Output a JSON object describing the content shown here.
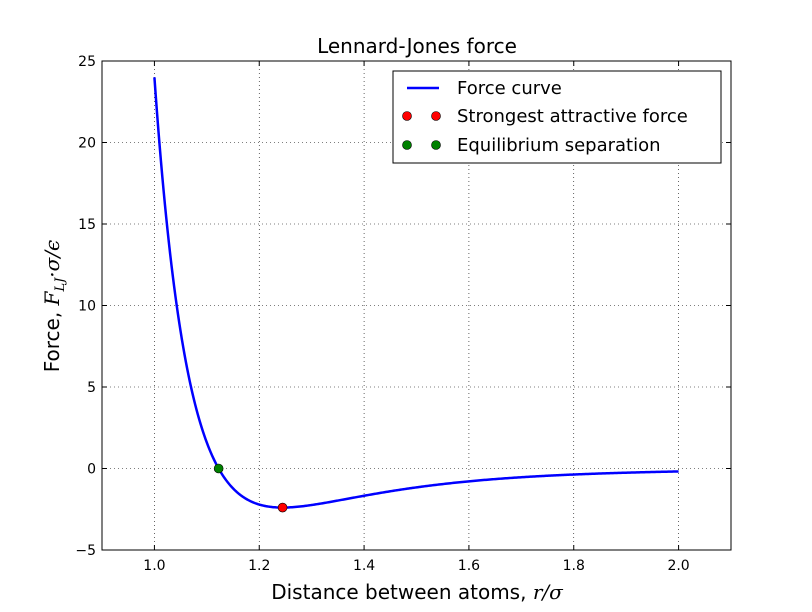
{
  "chart_data": {
    "type": "line",
    "title": "Lennard-Jones force",
    "xlabel_prefix": "Distance between atoms,",
    "xlabel_math": "r/σ",
    "ylabel_prefix": "Force,",
    "ylabel_math": "F",
    "ylabel_sub": "LJ",
    "ylabel_math_tail": "·σ/ϵ",
    "xlim": [
      0.9,
      2.1
    ],
    "ylim": [
      -5,
      25
    ],
    "xticks": [
      1.0,
      1.2,
      1.4,
      1.6,
      1.8,
      2.0
    ],
    "xtick_labels": [
      "1.0",
      "1.2",
      "1.4",
      "1.6",
      "1.8",
      "2.0"
    ],
    "yticks": [
      -5,
      0,
      5,
      10,
      15,
      20,
      25
    ],
    "ytick_labels": [
      "−5",
      "0",
      "5",
      "10",
      "15",
      "20",
      "25"
    ],
    "grid": true,
    "legend_position": "top-right",
    "curve": {
      "name": "Force curve",
      "color": "#0000ff",
      "x_range": [
        1.0,
        2.0
      ],
      "formula": "24*(2/r^13 - 1/r^7)"
    },
    "points": [
      {
        "name": "Strongest attractive force",
        "x": 1.2445,
        "y": -2.3964,
        "color": "#ff0000"
      },
      {
        "name": "Equilibrium separation",
        "x": 1.1225,
        "y": 0.0,
        "color": "#008000"
      }
    ]
  }
}
